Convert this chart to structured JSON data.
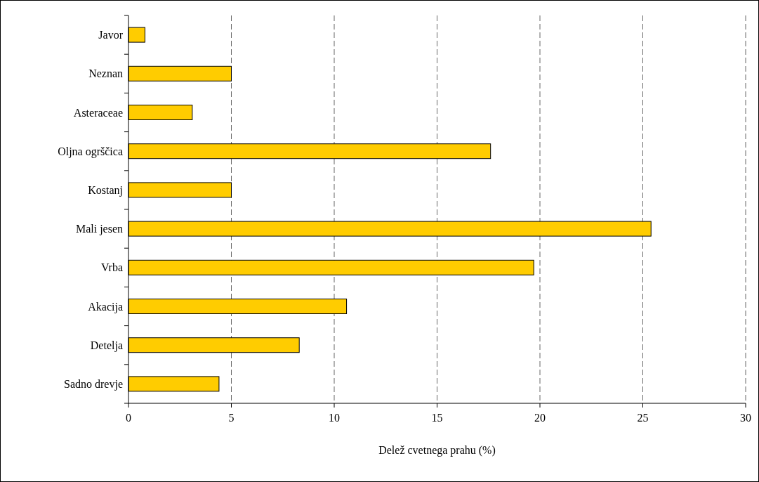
{
  "chart_data": {
    "type": "bar",
    "orientation": "horizontal",
    "xlabel": "Delež cvetnega prahu (%)",
    "categories": [
      "Javor",
      "Neznan",
      "Asteraceae",
      "Oljna ogrščica",
      "Kostanj",
      "Mali jesen",
      "Vrba",
      "Akacija",
      "Detelja",
      "Sadno drevje"
    ],
    "values": [
      0.8,
      5.0,
      3.1,
      17.6,
      5.0,
      25.4,
      19.7,
      10.6,
      8.3,
      4.4
    ],
    "color": "#ffcc00",
    "xlim": [
      0,
      30
    ],
    "xticks": [
      0,
      5,
      10,
      15,
      20,
      25,
      30
    ],
    "grid": "x"
  }
}
